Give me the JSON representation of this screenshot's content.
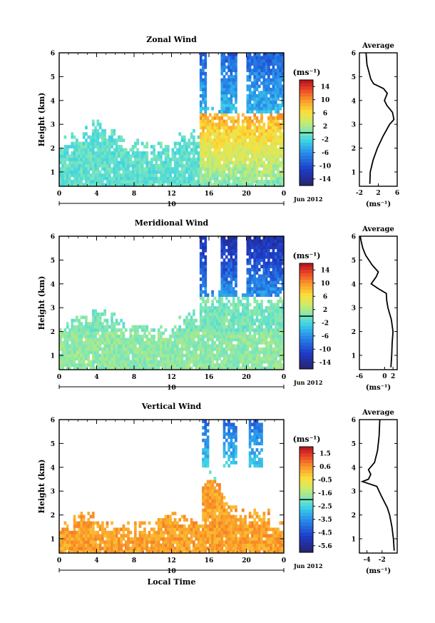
{
  "figure": {
    "date_label": "Jun 2012",
    "xaxis_title": "Local Time"
  },
  "chart_data": [
    {
      "type": "heatmap",
      "title": "Zonal Wind",
      "ylabel": "Height (km)",
      "xticks": [
        "0",
        "4",
        "8",
        "12",
        "16",
        "20",
        "0"
      ],
      "xlim": [
        0,
        24
      ],
      "date_tick": "10",
      "ylim": [
        0.4,
        6
      ],
      "yticks": [
        1,
        2,
        3,
        4,
        5,
        6
      ],
      "colorbar": {
        "unit": "(ms⁻¹)",
        "ticks": [
          "14",
          "10",
          "6",
          "2",
          "-2",
          "-6",
          "-10",
          "-14"
        ],
        "min": -16,
        "max": 16
      },
      "profile": {
        "title": "Average",
        "xlabel": "(ms⁻¹)",
        "xticks": [
          "-2",
          "2",
          "6"
        ],
        "xlim": [
          -2,
          6
        ],
        "height": [
          0.5,
          1.0,
          1.5,
          2.0,
          2.5,
          3.0,
          3.2,
          3.5,
          3.8,
          4.0,
          4.3,
          4.5,
          4.7,
          4.9,
          5.2,
          5.5,
          6.0
        ],
        "value": [
          0.2,
          0.3,
          0.9,
          1.8,
          3.0,
          4.4,
          5.3,
          5.0,
          3.8,
          3.3,
          3.9,
          3.1,
          1.0,
          0.4,
          0.0,
          -0.4,
          -0.6
        ]
      }
    },
    {
      "type": "heatmap",
      "title": "Meridional Wind",
      "ylabel": "Height (km)",
      "xticks": [
        "0",
        "4",
        "8",
        "12",
        "16",
        "20",
        "0"
      ],
      "xlim": [
        0,
        24
      ],
      "date_tick": "10",
      "ylim": [
        0.4,
        6
      ],
      "yticks": [
        1,
        2,
        3,
        4,
        5,
        6
      ],
      "colorbar": {
        "unit": "(ms⁻¹)",
        "ticks": [
          "14",
          "10",
          "6",
          "2",
          "-2",
          "-6",
          "-10",
          "-14"
        ],
        "min": -16,
        "max": 16
      },
      "profile": {
        "title": "Average",
        "xlabel": "(ms⁻¹)",
        "xticks": [
          "-6",
          "0",
          "2"
        ],
        "xlim": [
          -6,
          3
        ],
        "height": [
          0.5,
          1.0,
          1.5,
          2.0,
          2.5,
          3.0,
          3.3,
          3.6,
          3.8,
          4.0,
          4.3,
          4.5,
          4.8,
          5.2,
          5.5,
          5.8,
          6.0
        ],
        "value": [
          1.5,
          1.7,
          1.8,
          2.0,
          1.6,
          0.8,
          0.5,
          0.4,
          -1.5,
          -3.2,
          -2.0,
          -1.5,
          -3.0,
          -4.5,
          -5.2,
          -5.6,
          -5.8
        ]
      }
    },
    {
      "type": "heatmap",
      "title": "Vertical Wind",
      "ylabel": "Height (km)",
      "xticks": [
        "0",
        "4",
        "8",
        "12",
        "16",
        "20",
        "0"
      ],
      "xlim": [
        0,
        24
      ],
      "date_tick": "10",
      "ylim": [
        0.4,
        6
      ],
      "yticks": [
        1,
        2,
        3,
        4,
        5,
        6
      ],
      "colorbar": {
        "unit": "(ms⁻¹)",
        "ticks": [
          "1.5",
          "0.6",
          "-0.5",
          "-1.6",
          "-2.5",
          "-3.5",
          "-4.5",
          "-5.6"
        ],
        "min": -6,
        "max": 2
      },
      "profile": {
        "title": "Average",
        "xlabel": "(ms⁻¹)",
        "xticks": [
          "-4",
          "-2"
        ],
        "xlim": [
          -5,
          0
        ],
        "height": [
          0.5,
          1.0,
          1.5,
          2.0,
          2.3,
          2.8,
          3.2,
          3.4,
          3.5,
          3.7,
          3.9,
          4.2,
          4.7,
          5.3,
          6.0
        ],
        "value": [
          -0.4,
          -0.5,
          -0.7,
          -1.0,
          -1.3,
          -2.1,
          -2.7,
          -4.6,
          -3.8,
          -3.5,
          -3.8,
          -3.0,
          -2.6,
          -2.4,
          -2.3
        ]
      }
    }
  ]
}
